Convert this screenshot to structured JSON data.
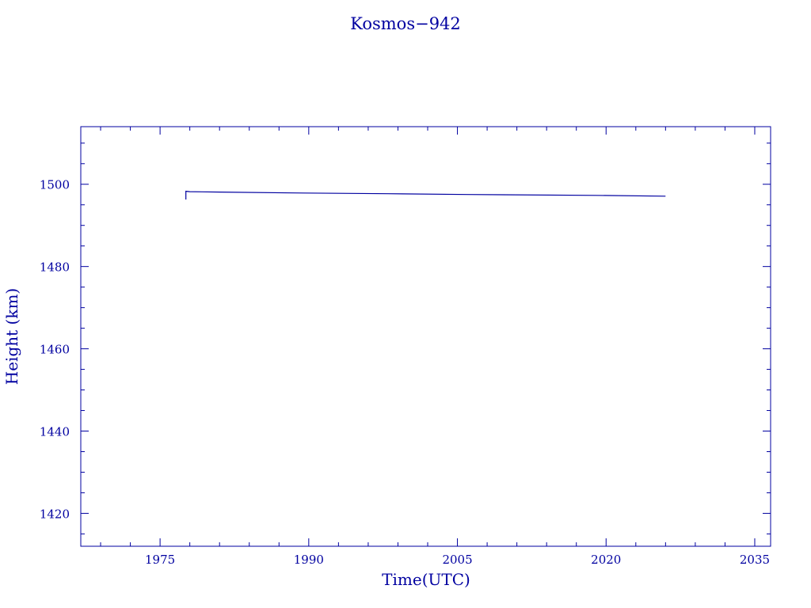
{
  "chart_data": {
    "type": "line",
    "title": "Kosmos−942",
    "xlabel": "Time(UTC)",
    "ylabel": "Height (km)",
    "xlim": [
      1967,
      2036.6
    ],
    "ylim": [
      1412,
      1514
    ],
    "x_ticks": [
      1975,
      1990,
      2005,
      2020,
      2035
    ],
    "y_ticks": [
      1420,
      1440,
      1460,
      1480,
      1500
    ],
    "grid": false,
    "color": "#0000a0",
    "series": [
      {
        "x": [
          1977.6,
          1977.6,
          1978.0,
          1981.0,
          1988.4,
          1998.0,
          2006.0,
          2019.0,
          2026.0
        ],
        "y": [
          1496.3,
          1498.3,
          1498.2,
          1498.1,
          1497.9,
          1497.7,
          1497.5,
          1497.3,
          1497.1
        ]
      }
    ]
  }
}
